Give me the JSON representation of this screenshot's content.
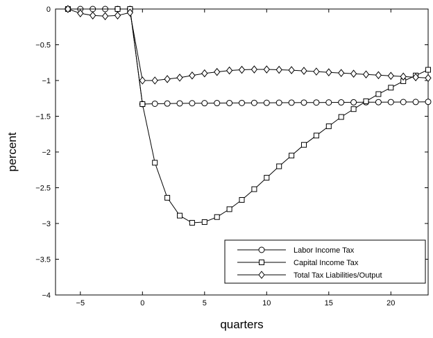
{
  "chart_data": {
    "type": "line",
    "title": "",
    "xlabel": "quarters",
    "ylabel": "percent",
    "xlim": [
      -7,
      23
    ],
    "ylim": [
      -4,
      0
    ],
    "x_ticks": [
      -5,
      0,
      5,
      10,
      15,
      20
    ],
    "y_ticks": [
      0,
      -0.5,
      -1,
      -1.5,
      -2,
      -2.5,
      -3,
      -3.5,
      -4
    ],
    "x_tick_labels": [
      "−5",
      "0",
      "5",
      "10",
      "15",
      "20"
    ],
    "y_tick_labels": [
      "0",
      "−0.5",
      "−1",
      "−1.5",
      "−2",
      "−2.5",
      "−3",
      "−3.5",
      "−4"
    ],
    "grid": false,
    "legend_position": "bottom-right",
    "series": [
      {
        "name": "Labor Income Tax",
        "marker": "circle",
        "color": "#000000",
        "x": [
          -6,
          -5,
          -4,
          -3,
          -2,
          -1,
          0,
          1,
          2,
          3,
          4,
          5,
          6,
          7,
          8,
          9,
          10,
          11,
          12,
          13,
          14,
          15,
          16,
          17,
          18,
          19,
          20,
          21,
          22,
          23
        ],
        "values": [
          0,
          0,
          0,
          0,
          0,
          0,
          -1.33,
          -1.325,
          -1.322,
          -1.32,
          -1.318,
          -1.317,
          -1.316,
          -1.315,
          -1.314,
          -1.313,
          -1.312,
          -1.311,
          -1.31,
          -1.309,
          -1.308,
          -1.307,
          -1.306,
          -1.305,
          -1.304,
          -1.303,
          -1.302,
          -1.301,
          -1.3,
          -1.298
        ]
      },
      {
        "name": "Capital Income Tax",
        "marker": "square",
        "color": "#000000",
        "x": [
          -6,
          -2,
          -1,
          0,
          1,
          2,
          3,
          4,
          5,
          6,
          7,
          8,
          9,
          10,
          11,
          12,
          13,
          14,
          15,
          16,
          17,
          18,
          19,
          20,
          21,
          22,
          23
        ],
        "values": [
          0,
          0,
          0,
          -1.33,
          -2.15,
          -2.64,
          -2.89,
          -2.99,
          -2.98,
          -2.91,
          -2.8,
          -2.67,
          -2.52,
          -2.36,
          -2.2,
          -2.05,
          -1.9,
          -1.77,
          -1.64,
          -1.51,
          -1.4,
          -1.29,
          -1.19,
          -1.1,
          -1.01,
          -0.93,
          -0.85
        ]
      },
      {
        "name": "Total Tax Liabilities/Output",
        "marker": "diamond",
        "color": "#000000",
        "x": [
          -6,
          -5,
          -4,
          -3,
          -2,
          -1,
          0,
          1,
          2,
          3,
          4,
          5,
          6,
          7,
          8,
          9,
          10,
          11,
          12,
          13,
          14,
          15,
          16,
          17,
          18,
          19,
          20,
          21,
          22,
          23
        ],
        "values": [
          0,
          -0.06,
          -0.09,
          -0.1,
          -0.09,
          -0.05,
          -1.0,
          -1.0,
          -0.98,
          -0.96,
          -0.93,
          -0.9,
          -0.88,
          -0.86,
          -0.85,
          -0.845,
          -0.845,
          -0.85,
          -0.855,
          -0.865,
          -0.875,
          -0.885,
          -0.895,
          -0.905,
          -0.915,
          -0.925,
          -0.935,
          -0.945,
          -0.955,
          -0.965
        ]
      }
    ]
  }
}
